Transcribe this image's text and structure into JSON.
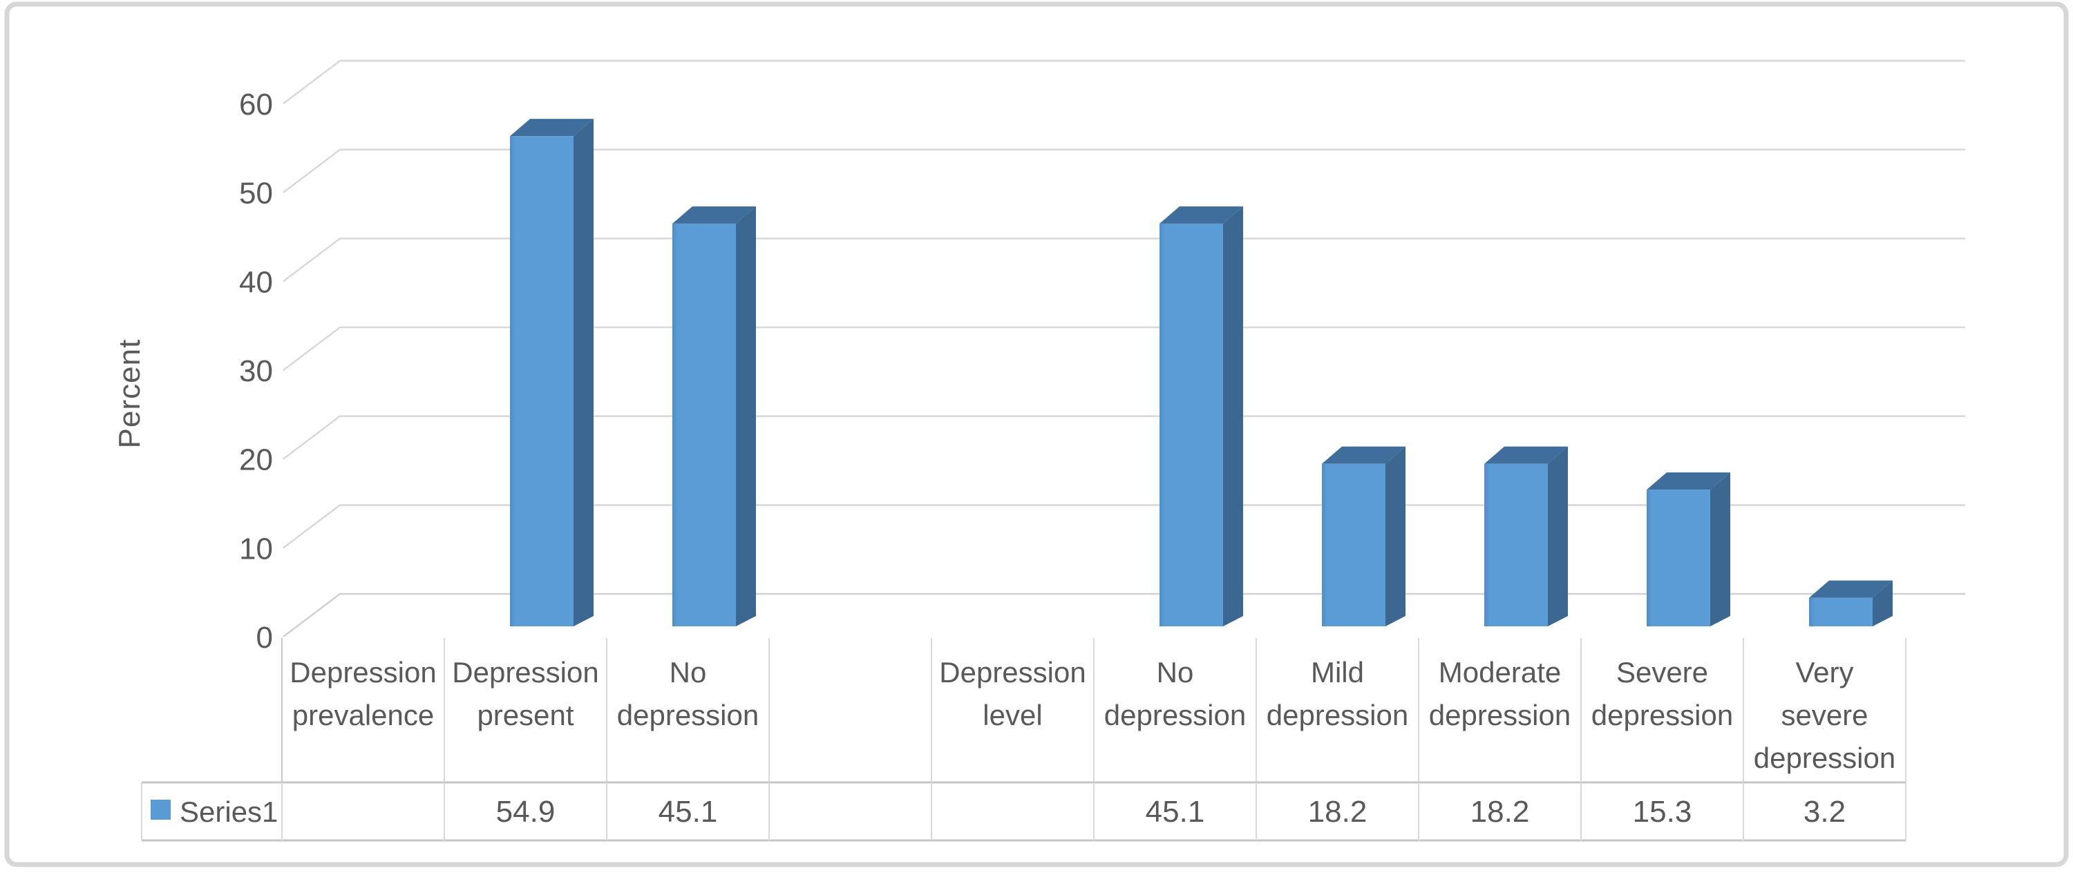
{
  "chart_data": {
    "type": "bar",
    "subtype": "excel-3d-column",
    "title": "",
    "xlabel": "",
    "ylabel": "Percent",
    "ylim": [
      0,
      60
    ],
    "yticks": [
      0,
      10,
      20,
      30,
      40,
      50,
      60
    ],
    "grid": true,
    "legend_position": "bottom-left-data-table",
    "categories": [
      "Depression prevalence",
      "Depression present",
      "No depression",
      "",
      "Depression level",
      "No depression",
      "Mild depression",
      "Moderate depression",
      "Severe depression",
      "Very severe depression"
    ],
    "series": [
      {
        "name": "Series1",
        "values": [
          null,
          54.9,
          45.1,
          null,
          null,
          45.1,
          18.2,
          18.2,
          15.3,
          3.2
        ]
      }
    ]
  },
  "colors": {
    "bar_front": "#5B9BD5",
    "bar_front_edge": "#4F8DC9",
    "bar_top": "#3F6E9C",
    "bar_side": "#3B6790",
    "gridline": "#D8D8D8",
    "baseline": "#D0D0D0",
    "table_border": "#C6C6C6",
    "cell_border": "#D9D9D9",
    "frame_border": "#D6D6D6",
    "text": "#595959",
    "background": "#FFFFFF"
  }
}
